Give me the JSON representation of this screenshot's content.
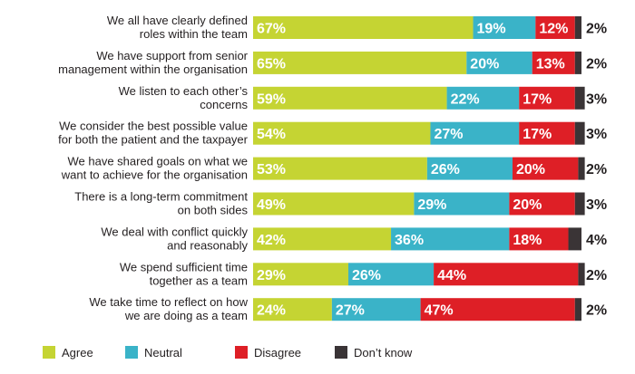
{
  "chart_data": {
    "type": "bar",
    "orientation": "horizontal",
    "stacked": true,
    "categories": [
      [
        "We all have clearly defined",
        "roles within the team"
      ],
      [
        "We have support from senior",
        "management within the organisation"
      ],
      [
        "We listen to each other’s",
        "concerns"
      ],
      [
        "We consider the best possible value",
        "for both the patient and the taxpayer"
      ],
      [
        "We have shared goals on what we",
        "want to achieve for the organisation"
      ],
      [
        "There is a long-term commitment",
        "on both sides"
      ],
      [
        "We deal with conflict quickly",
        "and reasonably"
      ],
      [
        "We spend sufficient time",
        "together as a team"
      ],
      [
        "We take time to reflect on how",
        "we are doing as a team"
      ]
    ],
    "series": [
      {
        "name": "Agree",
        "color": "#c5d433",
        "label_color": "#ffffff",
        "values": [
          67,
          65,
          59,
          54,
          53,
          49,
          42,
          29,
          24
        ]
      },
      {
        "name": "Neutral",
        "color": "#3ab3c8",
        "label_color": "#ffffff",
        "values": [
          19,
          20,
          22,
          27,
          26,
          29,
          36,
          26,
          27
        ]
      },
      {
        "name": "Disagree",
        "color": "#de1f26",
        "label_color": "#ffffff",
        "values": [
          12,
          13,
          17,
          17,
          20,
          20,
          18,
          44,
          47
        ]
      },
      {
        "name": "Don’t know",
        "color": "#3a3436",
        "label_color": "#231f20",
        "values": [
          2,
          2,
          3,
          3,
          2,
          3,
          4,
          2,
          2
        ]
      }
    ],
    "value_suffix": "%",
    "xlim": [
      0,
      100
    ],
    "legend_position": "bottom-left",
    "grid": false
  }
}
